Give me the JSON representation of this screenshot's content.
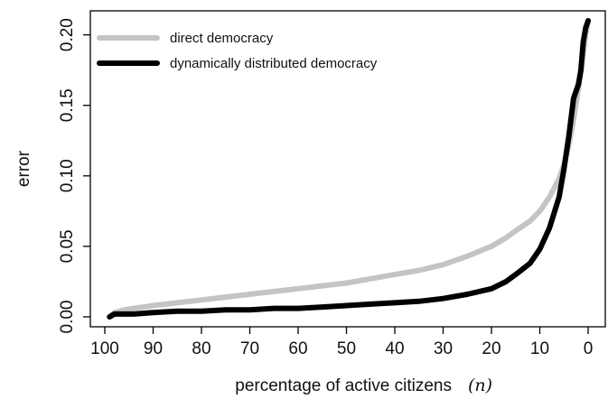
{
  "chart_data": {
    "type": "line",
    "xlabel": "percentage of active citizens",
    "xlabel_variable": "(n)",
    "ylabel": "error",
    "xlim": [
      100,
      0
    ],
    "ylim": [
      0,
      0.22
    ],
    "x_reversed": true,
    "grid": false,
    "legend_position": "top-left",
    "x_ticks": [
      {
        "value": 100,
        "label": "100"
      },
      {
        "value": 90,
        "label": "90"
      },
      {
        "value": 80,
        "label": "80"
      },
      {
        "value": 70,
        "label": "70"
      },
      {
        "value": 60,
        "label": "60"
      },
      {
        "value": 50,
        "label": "50"
      },
      {
        "value": 40,
        "label": "40"
      },
      {
        "value": 30,
        "label": "30"
      },
      {
        "value": 20,
        "label": "20"
      },
      {
        "value": 10,
        "label": "10"
      },
      {
        "value": 0,
        "label": "0"
      }
    ],
    "y_ticks": [
      {
        "value": 0.0,
        "label": "0.00"
      },
      {
        "value": 0.05,
        "label": "0.05"
      },
      {
        "value": 0.1,
        "label": "0.10"
      },
      {
        "value": 0.15,
        "label": "0.15"
      },
      {
        "value": 0.2,
        "label": "0.20"
      }
    ],
    "series": [
      {
        "name": "direct democracy",
        "color": "#c4c4c4",
        "x": [
          99,
          98,
          96,
          94,
          92,
          90,
          85,
          80,
          75,
          70,
          65,
          60,
          55,
          50,
          45,
          40,
          35,
          30,
          25,
          20,
          17,
          15,
          12,
          10,
          8,
          6,
          5,
          4,
          3,
          2,
          1,
          0.5,
          0
        ],
        "y": [
          0.0,
          0.003,
          0.005,
          0.006,
          0.007,
          0.008,
          0.01,
          0.012,
          0.014,
          0.016,
          0.018,
          0.02,
          0.022,
          0.024,
          0.027,
          0.03,
          0.033,
          0.037,
          0.043,
          0.05,
          0.056,
          0.061,
          0.068,
          0.075,
          0.085,
          0.098,
          0.108,
          0.122,
          0.14,
          0.162,
          0.187,
          0.2,
          0.21
        ]
      },
      {
        "name": "dynamically distributed democracy",
        "color": "#000000",
        "x": [
          99,
          98,
          96,
          94,
          90,
          85,
          80,
          75,
          70,
          65,
          60,
          55,
          50,
          45,
          40,
          35,
          30,
          25,
          20,
          17,
          15,
          12,
          10,
          8,
          6,
          5,
          4,
          3,
          2,
          1.5,
          1,
          0.5,
          0
        ],
        "y": [
          0.0,
          0.002,
          0.002,
          0.002,
          0.003,
          0.004,
          0.004,
          0.005,
          0.005,
          0.006,
          0.006,
          0.007,
          0.008,
          0.009,
          0.01,
          0.011,
          0.013,
          0.016,
          0.02,
          0.025,
          0.03,
          0.038,
          0.048,
          0.063,
          0.085,
          0.105,
          0.128,
          0.155,
          0.165,
          0.175,
          0.195,
          0.205,
          0.21
        ]
      }
    ]
  }
}
